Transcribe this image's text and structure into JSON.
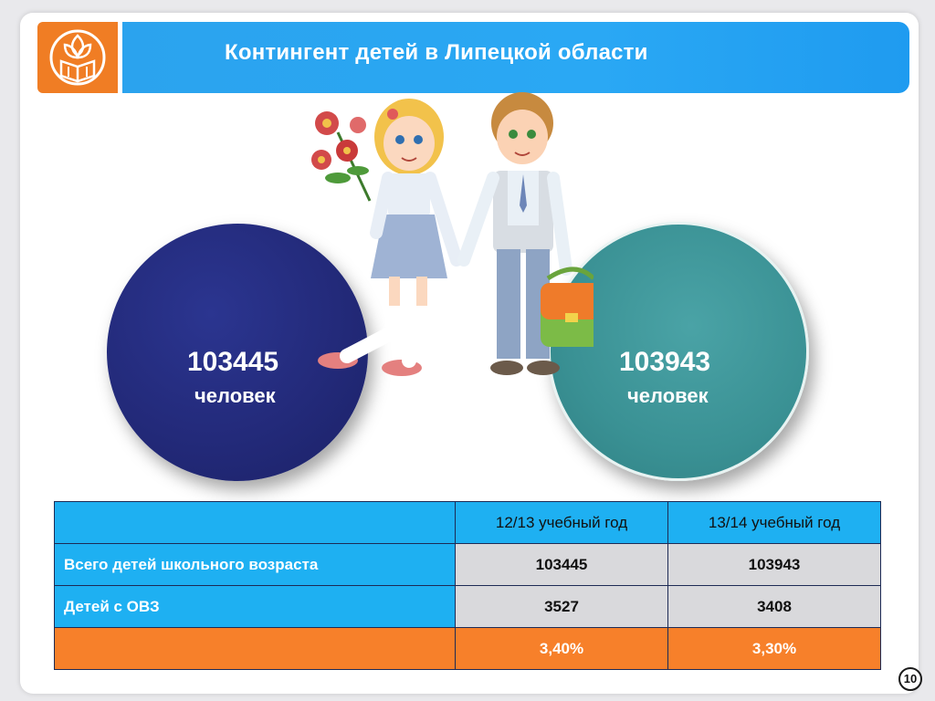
{
  "header": {
    "title": "Контингент детей в Липецкой области"
  },
  "logo": {
    "icon": "book-flower-emblem-icon",
    "color": "#f07d24"
  },
  "circles": {
    "left": {
      "value": "103445",
      "unit": "человек",
      "color": "#232a7a"
    },
    "right": {
      "value": "103943",
      "unit": "человек",
      "color": "#3a9194"
    }
  },
  "table": {
    "headers": [
      "",
      "12/13 учебный год",
      "13/14 учебный год"
    ],
    "rows": [
      [
        "Всего детей школьного возраста",
        "103445",
        "103943"
      ],
      [
        "Детей с ОВЗ",
        "3527",
        "3408"
      ],
      [
        "",
        "3,40%",
        "3,30%"
      ]
    ]
  },
  "page_number": "10",
  "colors": {
    "accent_blue": "#1eb0f2",
    "accent_orange": "#f7802a"
  }
}
